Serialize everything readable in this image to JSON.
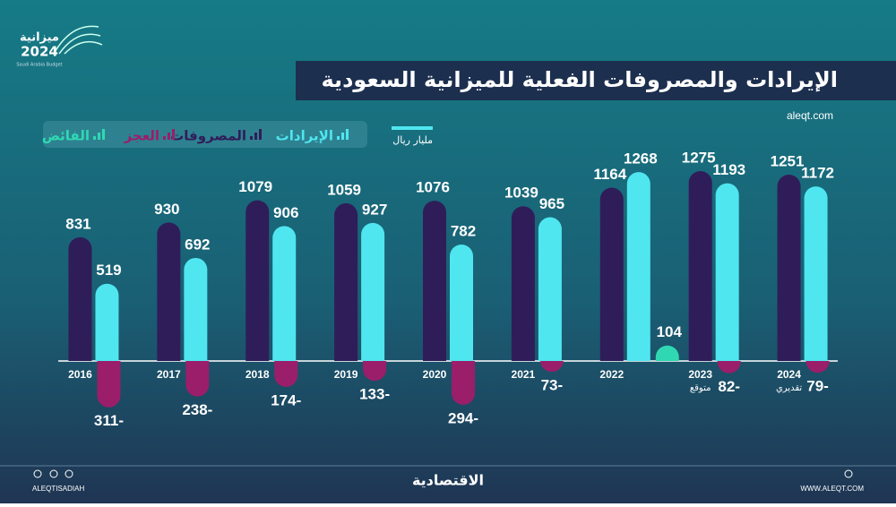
{
  "logo": {
    "title": "ميزانية",
    "year": "2024",
    "subtitle": "Saudi Arabia Budget"
  },
  "source": "aleqt.com",
  "footer": {
    "left": "ALEQTISADIAH",
    "center": "الاقتصادية",
    "right": "WWW.ALEQT.COM"
  },
  "chart_data": {
    "type": "bar",
    "title": "الإيرادات والمصروفات الفعلية للميزانية السعودية",
    "unit": "مليار ريال",
    "categories": [
      "2016",
      "2017",
      "2018",
      "2019",
      "2020",
      "2021",
      "2022",
      "2023",
      "2024"
    ],
    "category_notes": [
      null,
      null,
      null,
      null,
      null,
      null,
      null,
      "متوقع",
      "تقديري"
    ],
    "series": [
      {
        "name": "المصروفات",
        "color": "#2f1d59",
        "values": [
          831,
          930,
          1079,
          1059,
          1076,
          1039,
          1164,
          1275,
          1251
        ]
      },
      {
        "name": "الإيرادات",
        "color": "#4fe6f0",
        "values": [
          519,
          692,
          906,
          927,
          782,
          965,
          1268,
          1193,
          1172
        ]
      },
      {
        "name": "العجز",
        "color": "#9a1e6a",
        "values": [
          -311,
          -238,
          -174,
          -133,
          -294,
          -73,
          null,
          -82,
          -79
        ],
        "value_labels": [
          "311-",
          "238-",
          "174-",
          "133-",
          "294-",
          "73-",
          null,
          "82-",
          "79-"
        ]
      },
      {
        "name": "الفائض",
        "color": "#2fd8b2",
        "values": [
          null,
          null,
          null,
          null,
          null,
          null,
          104,
          null,
          null
        ]
      }
    ]
  }
}
